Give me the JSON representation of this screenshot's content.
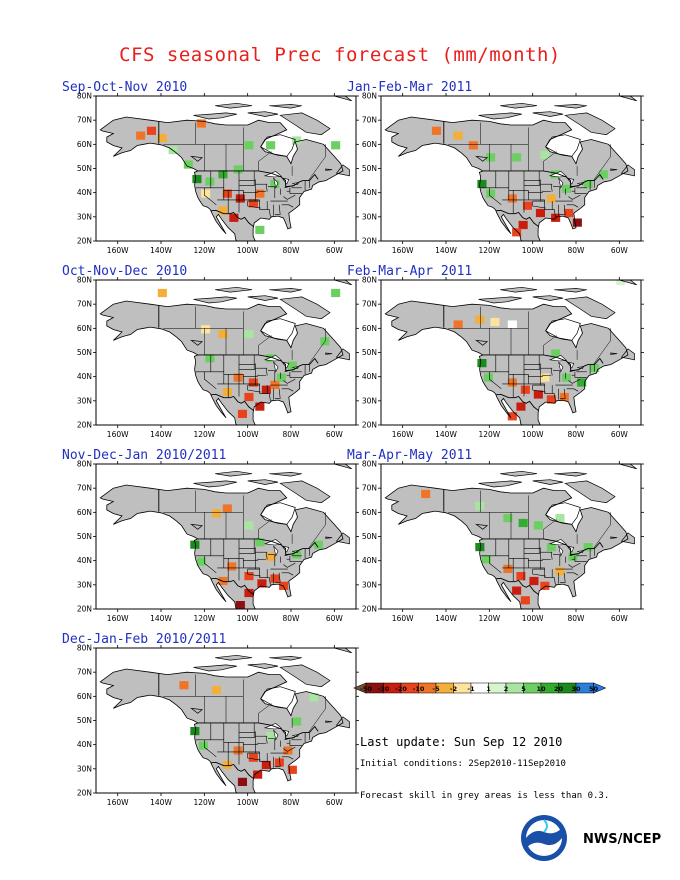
{
  "title": "CFS seasonal Prec forecast (mm/month)",
  "latitude_labels": [
    "80N",
    "70N",
    "60N",
    "50N",
    "40N",
    "30N",
    "20N"
  ],
  "longitude_labels": [
    "160W",
    "140W",
    "120W",
    "100W",
    "80W",
    "60W"
  ],
  "panels": [
    {
      "season": "Sep-Oct-Nov 2010",
      "col": 0,
      "row": 0,
      "anomalies": [
        {
          "lon": -150,
          "lat": 64,
          "value": -7
        },
        {
          "lon": -145,
          "lat": 66,
          "value": -12
        },
        {
          "lon": -140,
          "lat": 63,
          "value": -4
        },
        {
          "lon": -122,
          "lat": 69,
          "value": -7
        },
        {
          "lon": -135,
          "lat": 58,
          "value": 2
        },
        {
          "lon": -128,
          "lat": 52,
          "value": 5
        },
        {
          "lon": -118,
          "lat": 45,
          "value": 7
        },
        {
          "lon": -112,
          "lat": 48,
          "value": 12
        },
        {
          "lon": -105,
          "lat": 50,
          "value": 7
        },
        {
          "lon": -100,
          "lat": 60,
          "value": 7
        },
        {
          "lon": -90,
          "lat": 60,
          "value": 5
        },
        {
          "lon": -78,
          "lat": 62,
          "value": 2
        },
        {
          "lon": -110,
          "lat": 40,
          "value": -15
        },
        {
          "lon": -104,
          "lat": 38,
          "value": -25
        },
        {
          "lon": -98,
          "lat": 36,
          "value": -12
        },
        {
          "lon": -95,
          "lat": 40,
          "value": -7
        },
        {
          "lon": -107,
          "lat": 30,
          "value": -25
        },
        {
          "lon": -112,
          "lat": 33,
          "value": -4
        },
        {
          "lon": -120,
          "lat": 40,
          "value": -2
        },
        {
          "lon": -124,
          "lat": 46,
          "value": 25
        },
        {
          "lon": -88,
          "lat": 44,
          "value": 5
        },
        {
          "lon": -70,
          "lat": 74,
          "value": -1
        },
        {
          "lon": -60,
          "lat": 60,
          "value": 5
        },
        {
          "lon": -95,
          "lat": 25,
          "value": 5
        }
      ]
    },
    {
      "season": "Oct-Nov-Dec 2010",
      "col": 0,
      "row": 1,
      "anomalies": [
        {
          "lon": -120,
          "lat": 60,
          "value": -2
        },
        {
          "lon": -112,
          "lat": 58,
          "value": -4
        },
        {
          "lon": -100,
          "lat": 58,
          "value": 2
        },
        {
          "lon": -118,
          "lat": 48,
          "value": 5
        },
        {
          "lon": -90,
          "lat": 48,
          "value": 5
        },
        {
          "lon": -105,
          "lat": 40,
          "value": -7
        },
        {
          "lon": -98,
          "lat": 38,
          "value": -15
        },
        {
          "lon": -92,
          "lat": 35,
          "value": -25
        },
        {
          "lon": -100,
          "lat": 32,
          "value": -12
        },
        {
          "lon": -88,
          "lat": 37,
          "value": -7
        },
        {
          "lon": -95,
          "lat": 28,
          "value": -25
        },
        {
          "lon": -103,
          "lat": 25,
          "value": -12
        },
        {
          "lon": -110,
          "lat": 34,
          "value": -4
        },
        {
          "lon": -85,
          "lat": 40,
          "value": 5
        },
        {
          "lon": -80,
          "lat": 45,
          "value": 7
        },
        {
          "lon": -65,
          "lat": 55,
          "value": 5
        },
        {
          "lon": -60,
          "lat": 75,
          "value": 5
        },
        {
          "lon": -140,
          "lat": 75,
          "value": -4
        }
      ]
    },
    {
      "season": "Nov-Dec-Jan 2010/2011",
      "col": 0,
      "row": 2,
      "anomalies": [
        {
          "lon": -125,
          "lat": 47,
          "value": 25
        },
        {
          "lon": -122,
          "lat": 40,
          "value": 7
        },
        {
          "lon": -115,
          "lat": 60,
          "value": -4
        },
        {
          "lon": -110,
          "lat": 62,
          "value": -7
        },
        {
          "lon": -100,
          "lat": 55,
          "value": 2
        },
        {
          "lon": -108,
          "lat": 38,
          "value": -7
        },
        {
          "lon": -100,
          "lat": 34,
          "value": -15
        },
        {
          "lon": -94,
          "lat": 31,
          "value": -25
        },
        {
          "lon": -88,
          "lat": 33,
          "value": -12
        },
        {
          "lon": -84,
          "lat": 30,
          "value": -12
        },
        {
          "lon": -100,
          "lat": 27,
          "value": -25
        },
        {
          "lon": -104,
          "lat": 22,
          "value": -35
        },
        {
          "lon": -112,
          "lat": 32,
          "value": -7
        },
        {
          "lon": -90,
          "lat": 42,
          "value": -4
        },
        {
          "lon": -78,
          "lat": 43,
          "value": 5
        },
        {
          "lon": -68,
          "lat": 47,
          "value": 7
        },
        {
          "lon": -95,
          "lat": 48,
          "value": 5
        }
      ]
    },
    {
      "season": "Dec-Jan-Feb 2010/2011",
      "col": 0,
      "row": 3,
      "anomalies": [
        {
          "lon": -125,
          "lat": 46,
          "value": 25
        },
        {
          "lon": -121,
          "lat": 40,
          "value": 7
        },
        {
          "lon": -130,
          "lat": 65,
          "value": -7
        },
        {
          "lon": -115,
          "lat": 63,
          "value": -4
        },
        {
          "lon": -105,
          "lat": 38,
          "value": -7
        },
        {
          "lon": -98,
          "lat": 35,
          "value": -15
        },
        {
          "lon": -92,
          "lat": 32,
          "value": -25
        },
        {
          "lon": -86,
          "lat": 33,
          "value": -15
        },
        {
          "lon": -80,
          "lat": 30,
          "value": -12
        },
        {
          "lon": -96,
          "lat": 28,
          "value": -25
        },
        {
          "lon": -103,
          "lat": 25,
          "value": -35
        },
        {
          "lon": -110,
          "lat": 32,
          "value": -4
        },
        {
          "lon": -82,
          "lat": 38,
          "value": -7
        },
        {
          "lon": -90,
          "lat": 44,
          "value": 2
        },
        {
          "lon": -78,
          "lat": 50,
          "value": 5
        },
        {
          "lon": -70,
          "lat": 60,
          "value": 2
        }
      ]
    },
    {
      "season": "Jan-Feb-Mar 2011",
      "col": 1,
      "row": 0,
      "anomalies": [
        {
          "lon": -145,
          "lat": 66,
          "value": -7
        },
        {
          "lon": -135,
          "lat": 64,
          "value": -4
        },
        {
          "lon": -128,
          "lat": 60,
          "value": -7
        },
        {
          "lon": -120,
          "lat": 55,
          "value": 5
        },
        {
          "lon": -108,
          "lat": 55,
          "value": 5
        },
        {
          "lon": -95,
          "lat": 56,
          "value": 2
        },
        {
          "lon": -124,
          "lat": 44,
          "value": 25
        },
        {
          "lon": -120,
          "lat": 40,
          "value": 7
        },
        {
          "lon": -110,
          "lat": 38,
          "value": -7
        },
        {
          "lon": -103,
          "lat": 35,
          "value": -15
        },
        {
          "lon": -97,
          "lat": 32,
          "value": -25
        },
        {
          "lon": -90,
          "lat": 30,
          "value": -25
        },
        {
          "lon": -84,
          "lat": 32,
          "value": -15
        },
        {
          "lon": -80,
          "lat": 28,
          "value": -35
        },
        {
          "lon": -105,
          "lat": 27,
          "value": -25
        },
        {
          "lon": -108,
          "lat": 24,
          "value": -15
        },
        {
          "lon": -92,
          "lat": 38,
          "value": -4
        },
        {
          "lon": -85,
          "lat": 42,
          "value": 5
        },
        {
          "lon": -75,
          "lat": 44,
          "value": 7
        },
        {
          "lon": -68,
          "lat": 48,
          "value": 5
        },
        {
          "lon": -90,
          "lat": 48,
          "value": 7
        }
      ]
    },
    {
      "season": "Feb-Mar-Apr 2011",
      "col": 1,
      "row": 1,
      "anomalies": [
        {
          "lon": -135,
          "lat": 62,
          "value": -7
        },
        {
          "lon": -125,
          "lat": 64,
          "value": -4
        },
        {
          "lon": -118,
          "lat": 63,
          "value": -2
        },
        {
          "lon": -110,
          "lat": 62,
          "value": -1
        },
        {
          "lon": -124,
          "lat": 46,
          "value": 25
        },
        {
          "lon": -121,
          "lat": 40,
          "value": 7
        },
        {
          "lon": -110,
          "lat": 38,
          "value": -7
        },
        {
          "lon": -104,
          "lat": 35,
          "value": -15
        },
        {
          "lon": -98,
          "lat": 33,
          "value": -25
        },
        {
          "lon": -92,
          "lat": 31,
          "value": -15
        },
        {
          "lon": -86,
          "lat": 32,
          "value": -7
        },
        {
          "lon": -106,
          "lat": 28,
          "value": -25
        },
        {
          "lon": -110,
          "lat": 24,
          "value": -12
        },
        {
          "lon": -95,
          "lat": 40,
          "value": -2
        },
        {
          "lon": -85,
          "lat": 40,
          "value": 7
        },
        {
          "lon": -78,
          "lat": 38,
          "value": 12
        },
        {
          "lon": -72,
          "lat": 44,
          "value": 5
        },
        {
          "lon": -90,
          "lat": 50,
          "value": 5
        },
        {
          "lon": -60,
          "lat": 80,
          "value": 1
        }
      ]
    },
    {
      "season": "Mar-Apr-May 2011",
      "col": 1,
      "row": 2,
      "anomalies": [
        {
          "lon": -150,
          "lat": 68,
          "value": -7
        },
        {
          "lon": -125,
          "lat": 63,
          "value": 2
        },
        {
          "lon": -112,
          "lat": 58,
          "value": 5
        },
        {
          "lon": -105,
          "lat": 56,
          "value": 12
        },
        {
          "lon": -98,
          "lat": 55,
          "value": 7
        },
        {
          "lon": -88,
          "lat": 58,
          "value": 2
        },
        {
          "lon": -125,
          "lat": 46,
          "value": 25
        },
        {
          "lon": -122,
          "lat": 41,
          "value": 7
        },
        {
          "lon": -112,
          "lat": 37,
          "value": -7
        },
        {
          "lon": -106,
          "lat": 34,
          "value": -15
        },
        {
          "lon": -100,
          "lat": 32,
          "value": -25
        },
        {
          "lon": -95,
          "lat": 30,
          "value": -15
        },
        {
          "lon": -108,
          "lat": 28,
          "value": -25
        },
        {
          "lon": -104,
          "lat": 24,
          "value": -12
        },
        {
          "lon": -88,
          "lat": 36,
          "value": -4
        },
        {
          "lon": -82,
          "lat": 42,
          "value": 5
        },
        {
          "lon": -75,
          "lat": 46,
          "value": 7
        },
        {
          "lon": -92,
          "lat": 46,
          "value": 5
        }
      ]
    }
  ],
  "legend": {
    "unit": "mm/month",
    "ticks": [
      "-50",
      "-30",
      "-20",
      "-10",
      "-5",
      "-2",
      "-1",
      "1",
      "2",
      "5",
      "10",
      "20",
      "30",
      "50"
    ],
    "colors": [
      "#7a5030",
      "#8c1010",
      "#c81d0f",
      "#e8431c",
      "#f07428",
      "#f4ae3a",
      "#fde39c",
      "#ffffff",
      "#d6f5cf",
      "#a8e5a0",
      "#6bcf62",
      "#34ac30",
      "#1a8a1c",
      "#2a80d8",
      "#2a7cf0"
    ]
  },
  "last_update": "Last update: Sun Sep 12 2010",
  "initial_conditions": "Initial conditions: 2Sep2010-11Sep2010",
  "skill_note": "Forecast skill in grey areas is less than 0.3.",
  "agency": "NWS/NCEP",
  "colors": {
    "land": "#bfbfbf",
    "ocean": "#ffffff",
    "title": "#e8201c",
    "panel_title": "#2030c0"
  }
}
